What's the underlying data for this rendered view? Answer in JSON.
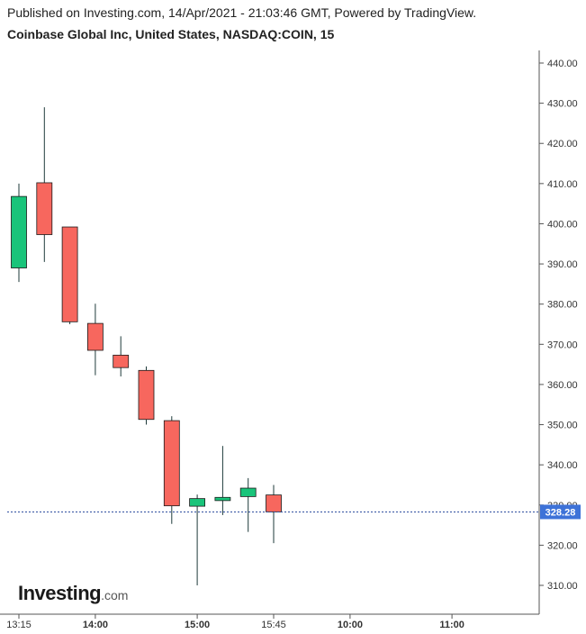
{
  "header": {
    "published": "Published on Investing.com, 14/Apr/2021 - 21:03:46 GMT, Powered by TradingView.",
    "symbol_title": "Coinbase Global Inc, United States, NASDAQ:COIN, 15"
  },
  "logo": {
    "brand": "Investing",
    "suffix": ".com"
  },
  "colors": {
    "up": "#19c47a",
    "down": "#f7675e",
    "wick": "#1e3a3a",
    "price_line": "#2f4fa0",
    "price_badge": "#3d72d8",
    "axis": "#555555"
  },
  "chart_data": {
    "type": "candlestick",
    "title": "Coinbase Global Inc, United States, NASDAQ:COIN, 15",
    "ylim": [
      302.5,
      443
    ],
    "yticks": [
      "440.00",
      "430.00",
      "420.00",
      "410.00",
      "400.00",
      "390.00",
      "380.00",
      "370.00",
      "360.00",
      "350.00",
      "340.00",
      "330.00",
      "320.00",
      "310.00"
    ],
    "ytick_values": [
      440,
      430,
      420,
      410,
      400,
      390,
      380,
      370,
      360,
      350,
      340,
      330,
      320,
      310
    ],
    "xticks": [
      {
        "label": "13:15",
        "slot": 0,
        "bold": false
      },
      {
        "label": "14:00",
        "slot": 3,
        "bold": true
      },
      {
        "label": "15:00",
        "slot": 7,
        "bold": true
      },
      {
        "label": "15:45",
        "slot": 10,
        "bold": false
      },
      {
        "label": "10:00",
        "slot": 13,
        "bold": true
      },
      {
        "label": "11:00",
        "slot": 17,
        "bold": true
      }
    ],
    "candles": [
      {
        "open": 389.0,
        "high": 410.0,
        "low": 385.5,
        "close": 406.8
      },
      {
        "open": 410.2,
        "high": 429.0,
        "low": 390.5,
        "close": 397.3
      },
      {
        "open": 399.2,
        "high": 399.2,
        "low": 375.0,
        "close": 375.6
      },
      {
        "open": 375.2,
        "high": 380.1,
        "low": 362.3,
        "close": 368.5
      },
      {
        "open": 367.3,
        "high": 372.0,
        "low": 362.0,
        "close": 364.2
      },
      {
        "open": 363.5,
        "high": 364.5,
        "low": 350.0,
        "close": 351.3
      },
      {
        "open": 351.0,
        "high": 352.1,
        "low": 325.3,
        "close": 329.8
      },
      {
        "open": 329.7,
        "high": 332.6,
        "low": 310.0,
        "close": 331.6
      },
      {
        "open": 331.1,
        "high": 344.7,
        "low": 327.5,
        "close": 331.9
      },
      {
        "open": 332.1,
        "high": 336.7,
        "low": 323.3,
        "close": 334.2
      },
      {
        "open": 332.5,
        "high": 335.0,
        "low": 320.5,
        "close": 328.3
      }
    ],
    "last_price": 328.28,
    "last_price_label": "328.28"
  }
}
